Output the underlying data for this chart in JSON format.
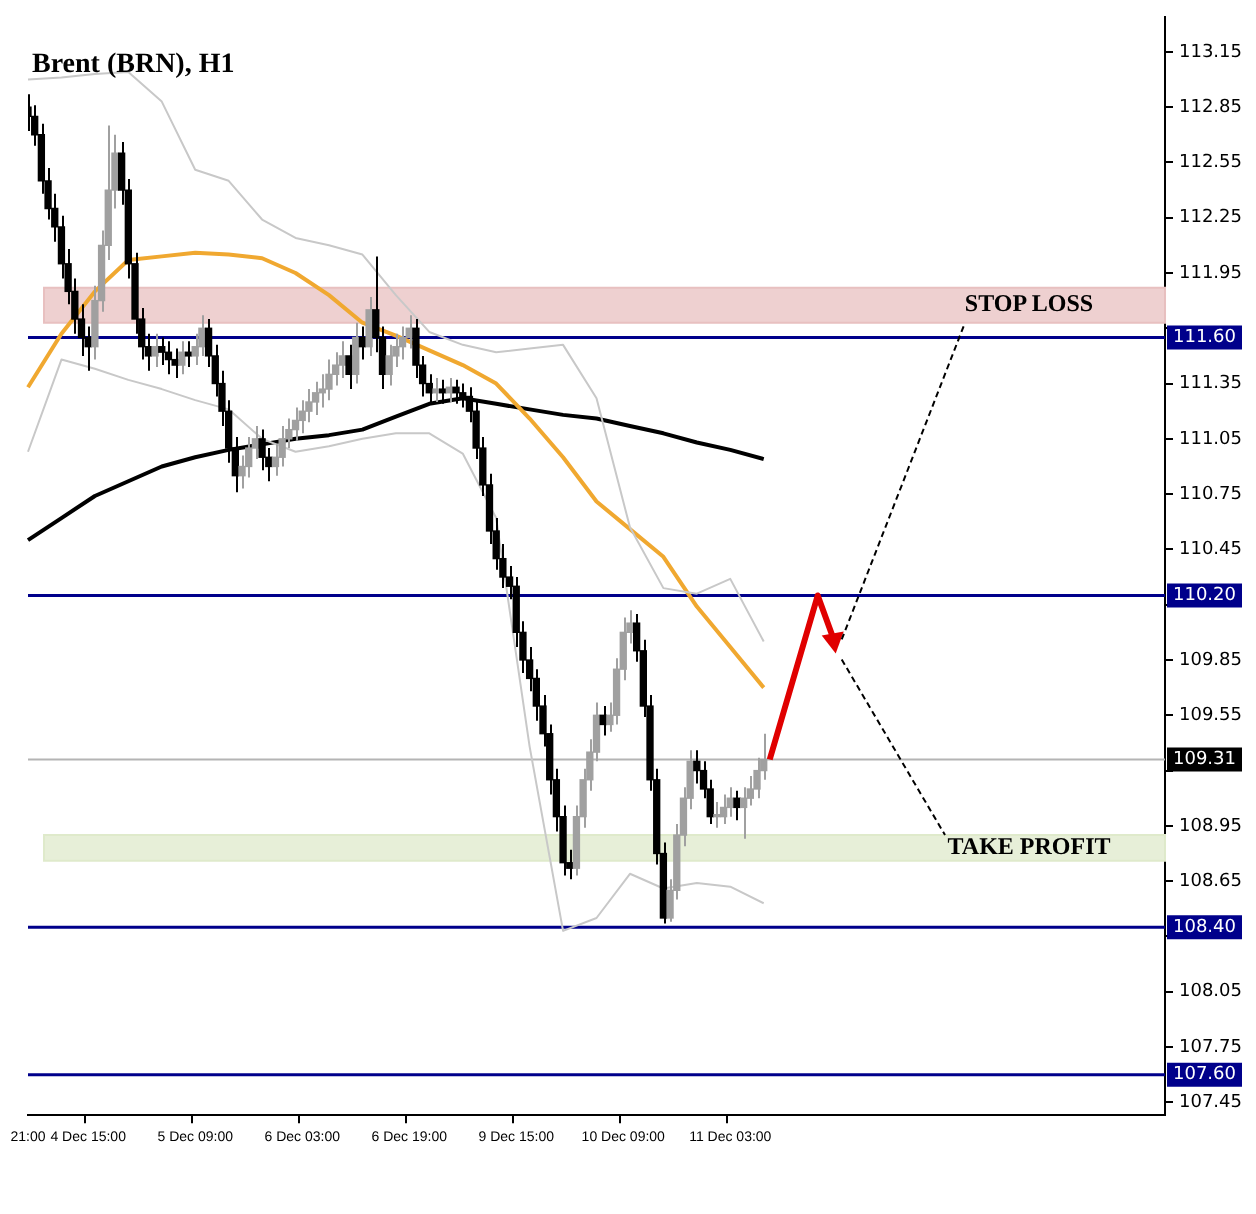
{
  "chart_data": {
    "type": "candlestick",
    "title": "Brent (BRN), H1",
    "categories": [
      "21:00",
      null,
      null,
      null,
      null,
      null,
      null,
      null,
      null,
      "4 Dec 15:00",
      null,
      null,
      null,
      null,
      null,
      null,
      null,
      null,
      null,
      null,
      null,
      null,
      null,
      null,
      null,
      "5 Dec 09:00",
      null,
      null,
      null,
      null,
      null,
      null,
      null,
      null,
      null,
      null,
      null,
      null,
      null,
      null,
      null,
      "6 Dec 03:00",
      null,
      null,
      null,
      null,
      null,
      null,
      null,
      null,
      null,
      null,
      null,
      null,
      null,
      null,
      null,
      "6 Dec 19:00",
      null,
      null,
      null,
      null,
      null,
      null,
      null,
      null,
      null,
      null,
      null,
      null,
      null,
      null,
      null,
      "9 Dec 15:00",
      null,
      null,
      null,
      null,
      null,
      null,
      null,
      null,
      null,
      null,
      null,
      null,
      null,
      null,
      null,
      "10 Dec 09:00",
      null,
      null,
      null,
      null,
      null,
      null,
      null,
      null,
      null,
      null,
      null,
      null,
      null,
      null,
      null,
      "11 Dec 03:00",
      null,
      null,
      null,
      null,
      null,
      null,
      null,
      null,
      null,
      null,
      null,
      null,
      null,
      null,
      null,
      null,
      null,
      null,
      null,
      null,
      null,
      null,
      null,
      null,
      null,
      null,
      null,
      null,
      null,
      null,
      null,
      null,
      null,
      null,
      null,
      null,
      null,
      null,
      null,
      null,
      null,
      null,
      null,
      null,
      null,
      null,
      null,
      null,
      null,
      null,
      null,
      null,
      null,
      null,
      null,
      null,
      null,
      null,
      null,
      null,
      null,
      null,
      null,
      null,
      null
    ],
    "ylim": [
      107.38,
      113.34
    ],
    "yticks": [
      113.15,
      112.85,
      112.55,
      112.25,
      111.95,
      {
        "value": 111.65,
        "label": null
      },
      111.35,
      111.05,
      110.75,
      110.45,
      {
        "value": 110.15,
        "label": null
      },
      109.85,
      109.55,
      {
        "value": 109.25,
        "label": null
      },
      108.95,
      108.65,
      {
        "value": 108.35,
        "label": null
      },
      108.05,
      107.75,
      107.45
    ],
    "ref_lines": [
      {
        "axis": "y",
        "value": 111.6,
        "label": "111.60",
        "color": "#00008b"
      },
      {
        "axis": "y",
        "value": 110.2,
        "label": "110.20",
        "color": "#00008b"
      },
      {
        "axis": "y",
        "value": 108.4,
        "label": "108.40",
        "color": "#00008b"
      },
      {
        "axis": "y",
        "value": 107.6,
        "label": "107.60",
        "color": "#00008b"
      },
      {
        "axis": "y",
        "value": 109.31,
        "label": "109.31",
        "color": "#b4b4b4"
      }
    ],
    "bands": [
      {
        "axis": "y",
        "from": 111.68,
        "to": 111.87,
        "label": "STOP LOSS",
        "color": "#e8c0c0"
      },
      {
        "axis": "y",
        "from": 108.76,
        "to": 108.9,
        "label": "TAKE PROFIT",
        "color": "#dfeacb"
      }
    ],
    "series": [
      {
        "type": "line",
        "color": "#c8c8c8",
        "values": [
          113.0,
          null,
          null,
          null,
          null,
          113.01,
          null,
          null,
          null,
          null,
          113.03,
          null,
          null,
          null,
          null,
          113.04,
          null,
          null,
          null,
          null,
          112.88,
          null,
          null,
          null,
          null,
          112.51,
          null,
          null,
          null,
          null,
          112.45,
          null,
          null,
          null,
          null,
          112.24,
          null,
          null,
          null,
          null,
          112.14,
          null,
          null,
          null,
          null,
          112.1,
          null,
          null,
          null,
          null,
          112.05,
          null,
          null,
          null,
          null,
          111.83,
          null,
          null,
          null,
          null,
          111.63,
          null,
          null,
          null,
          null,
          111.56,
          null,
          null,
          null,
          null,
          111.52,
          null,
          null,
          null,
          null,
          111.54,
          null,
          null,
          null,
          null,
          111.56,
          null,
          null,
          null,
          null,
          111.27,
          null,
          null,
          null,
          null,
          110.57,
          null,
          null,
          null,
          null,
          110.24,
          null,
          null,
          null,
          null,
          110.21,
          null,
          null,
          null,
          null,
          110.29,
          null,
          null,
          null,
          null,
          109.95,
          null,
          null,
          null,
          null,
          null,
          null,
          null,
          null,
          null,
          null,
          null,
          null,
          null,
          null,
          null,
          null,
          null,
          null,
          null,
          null,
          null,
          null,
          null,
          null,
          null,
          null,
          null,
          null,
          null,
          null,
          null,
          null,
          null,
          null,
          null,
          null,
          null,
          null,
          null,
          null,
          null,
          null,
          null,
          null,
          null,
          null,
          null,
          null,
          null,
          null,
          null,
          null,
          null,
          null,
          null,
          null,
          null,
          null,
          null,
          null
        ]
      },
      {
        "type": "line",
        "color": "#c8c8c8",
        "values": [
          110.98,
          null,
          null,
          null,
          null,
          111.48,
          null,
          null,
          null,
          null,
          111.43,
          null,
          null,
          null,
          null,
          111.37,
          null,
          null,
          null,
          null,
          111.32,
          null,
          null,
          null,
          null,
          111.26,
          null,
          null,
          null,
          null,
          111.21,
          null,
          null,
          null,
          null,
          111.05,
          null,
          null,
          null,
          null,
          110.98,
          null,
          null,
          null,
          null,
          111.01,
          null,
          null,
          null,
          null,
          111.05,
          null,
          null,
          null,
          null,
          111.08,
          null,
          null,
          null,
          null,
          111.08,
          null,
          null,
          null,
          null,
          110.97,
          null,
          null,
          null,
          null,
          110.62,
          null,
          null,
          null,
          null,
          109.38,
          null,
          null,
          null,
          null,
          108.38,
          null,
          null,
          null,
          null,
          108.45,
          null,
          null,
          null,
          null,
          108.69,
          null,
          null,
          null,
          null,
          108.61,
          null,
          null,
          null,
          null,
          108.64,
          null,
          null,
          null,
          null,
          108.62,
          null,
          null,
          null,
          null,
          108.53,
          null,
          null,
          null,
          null,
          null,
          null,
          null,
          null,
          null,
          null,
          null,
          null,
          null,
          null,
          null,
          null,
          null,
          null,
          null,
          null,
          null,
          null,
          null,
          null,
          null,
          null,
          null,
          null,
          null,
          null,
          null,
          null,
          null,
          null,
          null,
          null,
          null,
          null,
          null,
          null,
          null,
          null,
          null,
          null,
          null,
          null,
          null,
          null,
          null,
          null,
          null,
          null,
          null,
          null,
          null,
          null,
          null,
          null,
          null,
          null
        ]
      },
      {
        "type": "line",
        "color": "#f0a830",
        "values": [
          111.33,
          null,
          null,
          null,
          null,
          111.62,
          null,
          null,
          null,
          null,
          111.85,
          null,
          null,
          null,
          null,
          112.02,
          null,
          null,
          null,
          null,
          112.04,
          null,
          null,
          null,
          null,
          112.06,
          null,
          null,
          null,
          null,
          112.05,
          null,
          null,
          null,
          null,
          112.03,
          null,
          null,
          null,
          null,
          111.95,
          null,
          null,
          null,
          null,
          111.83,
          null,
          null,
          null,
          null,
          111.68,
          null,
          null,
          null,
          null,
          111.61,
          null,
          null,
          null,
          null,
          111.53,
          null,
          null,
          null,
          null,
          111.45,
          null,
          null,
          null,
          null,
          111.35,
          null,
          null,
          null,
          null,
          111.16,
          null,
          null,
          null,
          null,
          110.95,
          null,
          null,
          null,
          null,
          110.71,
          null,
          null,
          null,
          null,
          110.56,
          null,
          null,
          null,
          null,
          110.41,
          null,
          null,
          null,
          null,
          110.14,
          null,
          null,
          null,
          null,
          109.92,
          null,
          null,
          null,
          null,
          109.7,
          null,
          null,
          null,
          null,
          null,
          null,
          null,
          null,
          null,
          null,
          null,
          null,
          null,
          null,
          null,
          null,
          null,
          null,
          null,
          null,
          null,
          null,
          null,
          null,
          null,
          null,
          null,
          null,
          null,
          null,
          null,
          null,
          null,
          null,
          null,
          null,
          null,
          null,
          null,
          null,
          null,
          null,
          null,
          null,
          null,
          null,
          null,
          null,
          null,
          null,
          null,
          null,
          null,
          null,
          null,
          null,
          null,
          null,
          null,
          null
        ]
      },
      {
        "type": "line",
        "color": "#000000",
        "values": [
          110.5,
          null,
          null,
          null,
          null,
          110.62,
          null,
          null,
          null,
          null,
          110.74,
          null,
          null,
          null,
          null,
          110.82,
          null,
          null,
          null,
          null,
          110.9,
          null,
          null,
          null,
          null,
          110.95,
          null,
          null,
          null,
          null,
          110.99,
          null,
          null,
          null,
          null,
          111.02,
          null,
          null,
          null,
          null,
          111.05,
          null,
          null,
          null,
          null,
          111.07,
          null,
          null,
          null,
          null,
          111.1,
          null,
          null,
          null,
          null,
          111.17,
          null,
          null,
          null,
          null,
          111.24,
          null,
          null,
          null,
          null,
          111.27,
          null,
          null,
          null,
          null,
          111.24,
          null,
          null,
          null,
          null,
          111.21,
          null,
          null,
          null,
          null,
          111.18,
          null,
          null,
          null,
          null,
          111.16,
          null,
          null,
          null,
          null,
          111.12,
          null,
          null,
          null,
          null,
          111.08,
          null,
          null,
          null,
          null,
          111.03,
          null,
          null,
          null,
          null,
          110.99,
          null,
          null,
          null,
          null,
          110.94,
          null,
          null,
          null,
          null,
          null,
          null,
          null,
          null,
          null,
          null,
          null,
          null,
          null,
          null,
          null,
          null,
          null,
          null,
          null,
          null,
          null,
          null,
          null,
          null,
          null,
          null,
          null,
          null,
          null,
          null,
          null,
          null,
          null,
          null,
          null,
          null,
          null,
          null,
          null,
          null,
          null,
          null,
          null,
          null,
          null,
          null,
          null,
          null,
          null,
          null,
          null,
          null,
          null,
          null,
          null,
          null,
          null,
          null,
          null,
          null
        ]
      },
      {
        "colors": [
          "#000000",
          "#000000",
          "#000000",
          "#000000",
          "#000000",
          "#000000",
          "#000000",
          "#000000",
          "#000000",
          "#000000",
          "#a0a0a0",
          "#a0a0a0",
          "#a0a0a0",
          "#a0a0a0",
          "#000000",
          "#000000",
          "#000000",
          "#000000",
          "#000000",
          "#a0a0a0",
          "#000000",
          "#000000",
          "#000000",
          "#a0a0a0",
          "#000000",
          "#a0a0a0",
          "#a0a0a0",
          "#000000",
          "#000000",
          "#000000",
          "#000000",
          "#000000",
          "#a0a0a0",
          "#a0a0a0",
          "#a0a0a0",
          "#000000",
          "#000000",
          "#a0a0a0",
          "#a0a0a0",
          "#a0a0a0",
          "#a0a0a0",
          "#a0a0a0",
          "#a0a0a0",
          "#a0a0a0",
          "#a0a0a0",
          "#a0a0a0",
          "#a0a0a0",
          "#a0a0a0",
          "#000000",
          "#a0a0a0",
          "#000000",
          "#a0a0a0",
          "#000000",
          "#000000",
          "#a0a0a0",
          "#a0a0a0",
          "#a0a0a0",
          "#a0a0a0",
          "#000000",
          "#000000",
          "#000000",
          "#a0a0a0",
          "#000000",
          "#a0a0a0",
          "#000000",
          "#000000",
          "#000000",
          "#000000",
          "#000000",
          "#000000",
          "#000000",
          "#000000",
          "#000000",
          "#000000",
          "#000000",
          "#000000",
          "#000000",
          "#000000",
          "#000000",
          "#000000",
          "#000000",
          "#000000",
          "#a0a0a0",
          "#a0a0a0",
          "#a0a0a0",
          "#a0a0a0",
          "#000000",
          "#a0a0a0",
          "#a0a0a0",
          "#a0a0a0",
          "#a0a0a0",
          "#000000",
          "#000000",
          "#000000",
          "#000000",
          "#000000",
          "#a0a0a0",
          "#a0a0a0",
          "#a0a0a0",
          "#a0a0a0",
          "#000000",
          "#000000",
          "#000000",
          "#a0a0a0",
          "#a0a0a0",
          "#a0a0a0",
          "#000000",
          "#a0a0a0",
          "#a0a0a0",
          "#a0a0a0",
          "#a0a0a0",
          null,
          null,
          null,
          null,
          null,
          null,
          null,
          null,
          null,
          null,
          null,
          null,
          null,
          null,
          null,
          null,
          null,
          null,
          null,
          null,
          null,
          null,
          null,
          null,
          null,
          null,
          null,
          null,
          null,
          null,
          null,
          null,
          null,
          null,
          null,
          null,
          null,
          null,
          null,
          null,
          null,
          null,
          null,
          null,
          null,
          null,
          null,
          null,
          null,
          null,
          null,
          null,
          null,
          null,
          null,
          null,
          null,
          null,
          null,
          null
        ],
        "ohlc": [
          [
            112.85,
            112.92,
            112.72,
            112.8
          ],
          [
            112.8,
            112.86,
            112.64,
            112.7
          ],
          [
            112.7,
            112.76,
            112.38,
            112.45
          ],
          [
            112.45,
            112.52,
            112.24,
            112.3
          ],
          [
            112.3,
            112.38,
            112.12,
            112.2
          ],
          [
            112.2,
            112.26,
            111.92,
            112.0
          ],
          [
            112.0,
            112.08,
            111.78,
            111.85
          ],
          [
            111.85,
            111.92,
            111.62,
            111.7
          ],
          [
            111.7,
            111.78,
            111.5,
            111.6
          ],
          [
            111.6,
            111.66,
            111.42,
            111.55
          ],
          [
            111.55,
            111.88,
            111.48,
            111.8
          ],
          [
            111.8,
            112.18,
            111.74,
            112.1
          ],
          [
            112.1,
            112.75,
            112.02,
            112.4
          ],
          [
            112.4,
            112.7,
            112.3,
            112.6
          ],
          [
            112.6,
            112.66,
            112.32,
            112.4
          ],
          [
            112.4,
            112.46,
            111.92,
            112.0
          ],
          [
            112.0,
            112.06,
            111.62,
            111.7
          ],
          [
            111.7,
            111.76,
            111.48,
            111.55
          ],
          [
            111.55,
            111.62,
            111.42,
            111.5
          ],
          [
            111.5,
            111.62,
            111.44,
            111.55
          ],
          [
            111.55,
            111.6,
            111.45,
            111.52
          ],
          [
            111.52,
            111.58,
            111.4,
            111.48
          ],
          [
            111.48,
            111.54,
            111.38,
            111.45
          ],
          [
            111.45,
            111.58,
            111.4,
            111.52
          ],
          [
            111.52,
            111.58,
            111.44,
            111.5
          ],
          [
            111.5,
            111.62,
            111.45,
            111.55
          ],
          [
            111.55,
            111.72,
            111.5,
            111.65
          ],
          [
            111.65,
            111.7,
            111.44,
            111.5
          ],
          [
            111.5,
            111.56,
            111.28,
            111.35
          ],
          [
            111.35,
            111.42,
            111.12,
            111.2
          ],
          [
            111.2,
            111.26,
            110.92,
            111.0
          ],
          [
            111.0,
            111.06,
            110.76,
            110.85
          ],
          [
            110.85,
            110.96,
            110.78,
            110.9
          ],
          [
            110.9,
            111.06,
            110.84,
            111.0
          ],
          [
            111.0,
            111.12,
            110.94,
            111.05
          ],
          [
            111.05,
            111.1,
            110.88,
            110.95
          ],
          [
            110.95,
            111.0,
            110.82,
            110.9
          ],
          [
            110.9,
            111.02,
            110.85,
            110.95
          ],
          [
            110.95,
            111.12,
            110.9,
            111.05
          ],
          [
            111.05,
            111.16,
            111.0,
            111.1
          ],
          [
            111.1,
            111.22,
            111.04,
            111.15
          ],
          [
            111.15,
            111.26,
            111.08,
            111.2
          ],
          [
            111.2,
            111.32,
            111.14,
            111.25
          ],
          [
            111.25,
            111.36,
            111.18,
            111.3
          ],
          [
            111.3,
            111.4,
            111.22,
            111.32
          ],
          [
            111.32,
            111.48,
            111.26,
            111.4
          ],
          [
            111.4,
            111.52,
            111.34,
            111.45
          ],
          [
            111.45,
            111.58,
            111.38,
            111.5
          ],
          [
            111.5,
            111.56,
            111.32,
            111.4
          ],
          [
            111.4,
            111.68,
            111.35,
            111.6
          ],
          [
            111.6,
            111.66,
            111.48,
            111.55
          ],
          [
            111.55,
            111.82,
            111.5,
            111.75
          ],
          [
            111.75,
            112.04,
            111.52,
            111.6
          ],
          [
            111.6,
            111.66,
            111.32,
            111.4
          ],
          [
            111.4,
            111.56,
            111.34,
            111.5
          ],
          [
            111.5,
            111.62,
            111.44,
            111.55
          ],
          [
            111.55,
            111.66,
            111.48,
            111.6
          ],
          [
            111.6,
            111.72,
            111.54,
            111.65
          ],
          [
            111.65,
            111.7,
            111.38,
            111.45
          ],
          [
            111.45,
            111.5,
            111.28,
            111.35
          ],
          [
            111.35,
            111.4,
            111.24,
            111.3
          ],
          [
            111.3,
            111.38,
            111.25,
            111.32
          ],
          [
            111.32,
            111.37,
            111.24,
            111.3
          ],
          [
            111.3,
            111.38,
            111.25,
            111.33
          ],
          [
            111.33,
            111.37,
            111.24,
            111.3
          ],
          [
            111.3,
            111.35,
            111.22,
            111.28
          ],
          [
            111.28,
            111.33,
            111.14,
            111.2
          ],
          [
            111.2,
            111.25,
            110.94,
            111.0
          ],
          [
            111.0,
            111.06,
            110.74,
            110.8
          ],
          [
            110.8,
            110.86,
            110.48,
            110.55
          ],
          [
            110.55,
            110.62,
            110.34,
            110.4
          ],
          [
            110.4,
            110.48,
            110.24,
            110.3
          ],
          [
            110.3,
            110.36,
            110.18,
            110.25
          ],
          [
            110.25,
            110.3,
            109.92,
            110.0
          ],
          [
            110.0,
            110.06,
            109.78,
            109.85
          ],
          [
            109.85,
            109.92,
            109.68,
            109.75
          ],
          [
            109.75,
            109.8,
            109.52,
            109.6
          ],
          [
            109.6,
            109.66,
            109.38,
            109.45
          ],
          [
            109.45,
            109.5,
            109.12,
            109.2
          ],
          [
            109.2,
            109.26,
            108.92,
            109.0
          ],
          [
            109.0,
            109.06,
            108.68,
            108.75
          ],
          [
            108.75,
            108.82,
            108.66,
            108.72
          ],
          [
            108.72,
            109.06,
            108.68,
            109.0
          ],
          [
            109.0,
            109.26,
            108.94,
            109.2
          ],
          [
            109.2,
            109.42,
            109.14,
            109.35
          ],
          [
            109.35,
            109.62,
            109.3,
            109.55
          ],
          [
            109.55,
            109.6,
            109.44,
            109.5
          ],
          [
            109.5,
            109.62,
            109.46,
            109.55
          ],
          [
            109.55,
            109.86,
            109.5,
            109.8
          ],
          [
            109.8,
            110.08,
            109.74,
            110.0
          ],
          [
            110.0,
            110.12,
            109.94,
            110.05
          ],
          [
            110.05,
            110.1,
            109.84,
            109.9
          ],
          [
            109.9,
            109.96,
            109.54,
            109.6
          ],
          [
            109.6,
            109.66,
            109.14,
            109.2
          ],
          [
            109.2,
            109.26,
            108.74,
            108.8
          ],
          [
            108.8,
            108.86,
            108.42,
            108.45
          ],
          [
            108.45,
            108.66,
            108.43,
            108.6
          ],
          [
            108.6,
            108.96,
            108.55,
            108.9
          ],
          [
            108.9,
            109.16,
            108.84,
            109.1
          ],
          [
            109.1,
            109.36,
            109.04,
            109.3
          ],
          [
            109.3,
            109.36,
            109.18,
            109.25
          ],
          [
            109.25,
            109.3,
            109.1,
            109.15
          ],
          [
            109.15,
            109.2,
            108.96,
            109.0
          ],
          [
            109.0,
            109.08,
            108.94,
            109.0
          ],
          [
            109.0,
            109.12,
            108.96,
            109.05
          ],
          [
            109.05,
            109.16,
            109.0,
            109.1
          ],
          [
            109.1,
            109.14,
            108.98,
            109.05
          ],
          [
            109.05,
            109.16,
            108.88,
            109.1
          ],
          [
            109.1,
            109.22,
            109.06,
            109.15
          ],
          [
            109.15,
            109.32,
            109.1,
            109.25
          ],
          [
            109.25,
            109.45,
            109.2,
            109.31
          ],
          null,
          null,
          null,
          null,
          null,
          null,
          null,
          null,
          null,
          null,
          null,
          null,
          null,
          null,
          null,
          null,
          null,
          null,
          null,
          null,
          null,
          null,
          null,
          null,
          null,
          null,
          null,
          null,
          null,
          null,
          null,
          null,
          null,
          null,
          null,
          null,
          null,
          null,
          null,
          null,
          null,
          null,
          null,
          null,
          null,
          null,
          null,
          null,
          null,
          null,
          null,
          null,
          null,
          null,
          null,
          null,
          null,
          null,
          null,
          null
        ]
      }
    ]
  }
}
